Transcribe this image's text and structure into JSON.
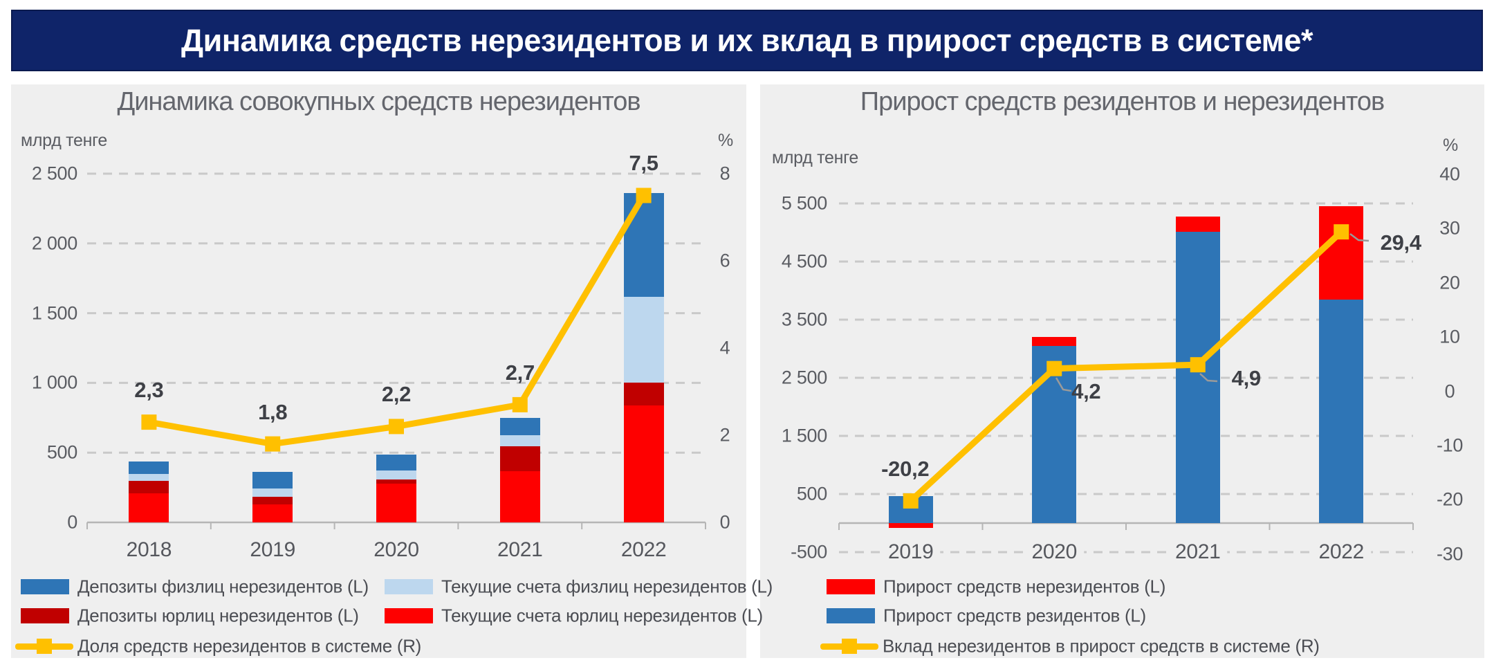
{
  "header": {
    "title": "Динамика средств нерезидентов и их вклад в прирост средств в системе*"
  },
  "colors": {
    "header_bg": "#0f2469",
    "panel_bg": "#efefef",
    "blue": "#2e75b6",
    "light_blue": "#bdd7ee",
    "dark_red": "#c00000",
    "red": "#fe0000",
    "yellow": "#ffc000",
    "gridline": "#c9c9c9"
  },
  "chart_data": [
    {
      "type": "bar",
      "subtype": "stacked bars + line on secondary axis",
      "title": "Динамика совокупных средств нерезидентов",
      "categories": [
        "2018",
        "2019",
        "2020",
        "2021",
        "2022"
      ],
      "left_axis": {
        "unit": "млрд тенге",
        "min": 0,
        "max": 2500,
        "step": 500,
        "ticks": [
          {
            "label": "2 500",
            "value": 2500
          },
          {
            "label": "2 000",
            "value": 2000
          },
          {
            "label": "1 500",
            "value": 1500
          },
          {
            "label": "1 000",
            "value": 1000
          },
          {
            "label": "500",
            "value": 500
          },
          {
            "label": "0",
            "value": 0
          }
        ]
      },
      "right_axis": {
        "unit": "%",
        "min": 0,
        "max": 8,
        "step": 2,
        "ticks": [
          {
            "label": "8",
            "value": 8
          },
          {
            "label": "6",
            "value": 6
          },
          {
            "label": "4",
            "value": 4
          },
          {
            "label": "2",
            "value": 2
          },
          {
            "label": "0",
            "value": 0
          }
        ]
      },
      "grid": "dashed horizontal",
      "series": [
        {
          "key": "current-accounts-corporate",
          "name": "Текущие счета юрлиц нерезидентов (L)",
          "color": "#fe0000",
          "values": [
            210,
            130,
            280,
            365,
            840
          ]
        },
        {
          "key": "deposits-corporate",
          "name": "Депозиты юрлиц нерезидентов (L)",
          "color": "#c00000",
          "values": [
            90,
            55,
            30,
            180,
            160
          ]
        },
        {
          "key": "current-accounts-individuals",
          "name": "Текущие счета физлиц нерезидентов (L)",
          "color": "#bdd7ee",
          "values": [
            45,
            60,
            60,
            80,
            615
          ]
        },
        {
          "key": "deposits-individuals",
          "name": "Депозиты физлиц нерезидентов (L)",
          "color": "#2e75b6",
          "values": [
            90,
            115,
            115,
            125,
            745
          ]
        }
      ],
      "line": {
        "key": "nonresident-share",
        "name": "Доля средств нерезидентов в системе (R)",
        "color": "#ffc000",
        "values": [
          2.3,
          1.8,
          2.2,
          2.7,
          7.5
        ],
        "labels": [
          "2,3",
          "1,8",
          "2,2",
          "2,7",
          "7,5"
        ]
      },
      "legend": [
        {
          "swatch": "box",
          "color": "#2e75b6",
          "label": "Депозиты физлиц нерезидентов (L)"
        },
        {
          "swatch": "box",
          "color": "#bdd7ee",
          "label": "Текущие счета физлиц нерезидентов (L)"
        },
        {
          "swatch": "box",
          "color": "#c00000",
          "label": "Депозиты юрлиц нерезидентов (L)"
        },
        {
          "swatch": "box",
          "color": "#fe0000",
          "label": "Текущие счета юрлиц нерезидентов (L)"
        },
        {
          "swatch": "line",
          "color": "#ffc000",
          "label": "Доля средств нерезидентов в системе (R)"
        }
      ]
    },
    {
      "type": "bar",
      "subtype": "stacked bars (with negative values) + line on secondary axis",
      "title": "Прирост средств резидентов и нерезидентов",
      "categories": [
        "2019",
        "2020",
        "2021",
        "2022"
      ],
      "left_axis": {
        "unit": "млрд тенге",
        "min": -500,
        "max": 5500,
        "step": 1000,
        "ticks": [
          {
            "label": "5 500",
            "value": 5500
          },
          {
            "label": "4 500",
            "value": 4500
          },
          {
            "label": "3 500",
            "value": 3500
          },
          {
            "label": "2 500",
            "value": 2500
          },
          {
            "label": "1 500",
            "value": 1500
          },
          {
            "label": "500",
            "value": 500
          },
          {
            "label": "-500",
            "value": -500
          }
        ]
      },
      "right_axis": {
        "unit": "%",
        "min": -30,
        "max": 40,
        "step": 10,
        "ticks": [
          {
            "label": "40",
            "value": 40
          },
          {
            "label": "30",
            "value": 30
          },
          {
            "label": "20",
            "value": 20
          },
          {
            "label": "10",
            "value": 10
          },
          {
            "label": "0",
            "value": 0
          },
          {
            "label": "-10",
            "value": -10
          },
          {
            "label": "-20",
            "value": -20
          },
          {
            "label": "-30",
            "value": -30
          }
        ]
      },
      "grid": "dashed horizontal",
      "series": [
        {
          "key": "residents-growth",
          "name": "Прирост средств резидентов (L)",
          "color": "#2e75b6",
          "values": [
            470,
            3050,
            5010,
            3845
          ]
        },
        {
          "key": "nonresidents-growth",
          "name": "Прирост средств нерезидентов (L)",
          "color": "#fe0000",
          "values": [
            -80,
            150,
            260,
            1605
          ]
        }
      ],
      "line": {
        "key": "nonresident-contribution",
        "name": "Вклад нерезидентов в прирост средств в системе (R)",
        "color": "#ffc000",
        "values": [
          -20.2,
          4.2,
          4.9,
          29.4
        ],
        "labels": [
          "-20,2",
          "4,2",
          "4,9",
          "29,4"
        ]
      },
      "legend": [
        {
          "swatch": "box",
          "color": "#fe0000",
          "label": "Прирост средств нерезидентов (L)"
        },
        {
          "swatch": "box",
          "color": "#2e75b6",
          "label": "Прирост средств резидентов (L)"
        },
        {
          "swatch": "line",
          "color": "#ffc000",
          "label": "Вклад нерезидентов в прирост средств в системе (R)"
        }
      ]
    }
  ]
}
